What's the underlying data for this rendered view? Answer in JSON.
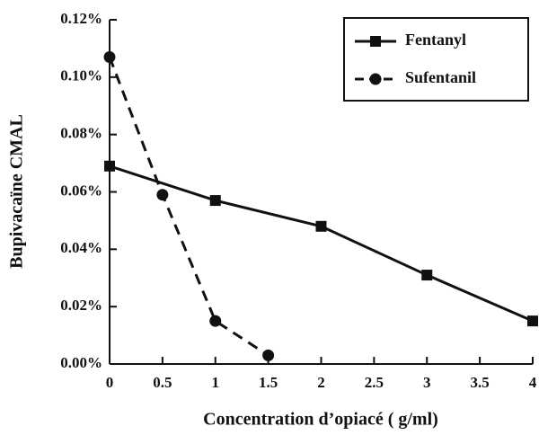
{
  "chart_data": {
    "type": "line",
    "xlabel": "Concentration d’opiacé ( g/ml)",
    "ylabel": "Bupivacaïne CMAL",
    "series": [
      {
        "name": "Fentanyl",
        "color": "#111111",
        "linestyle": "solid",
        "marker": "square",
        "x": [
          0,
          1,
          2,
          3,
          4
        ],
        "values": [
          0.069,
          0.057,
          0.048,
          0.031,
          0.015
        ]
      },
      {
        "name": "Sufentanil",
        "color": "#111111",
        "linestyle": "dashed",
        "marker": "circle",
        "x": [
          0,
          0.5,
          1,
          1.5
        ],
        "values": [
          0.107,
          0.059,
          0.015,
          0.003
        ]
      }
    ],
    "xlim": [
      0,
      4
    ],
    "xticks": [
      0,
      0.5,
      1,
      1.5,
      2,
      2.5,
      3,
      3.5,
      4
    ],
    "ylim": [
      0,
      0.12
    ],
    "yticks": [
      {
        "value": 0,
        "label": "0.00%"
      },
      {
        "value": 0.02,
        "label": "0.02%"
      },
      {
        "value": 0.04,
        "label": "0.04%"
      },
      {
        "value": 0.06,
        "label": "0.06%"
      },
      {
        "value": 0.08,
        "label": "0.08%"
      },
      {
        "value": 0.1,
        "label": "0.10%"
      },
      {
        "value": 0.12,
        "label": "0.12%"
      }
    ],
    "grid": false,
    "legend": "upper right"
  }
}
